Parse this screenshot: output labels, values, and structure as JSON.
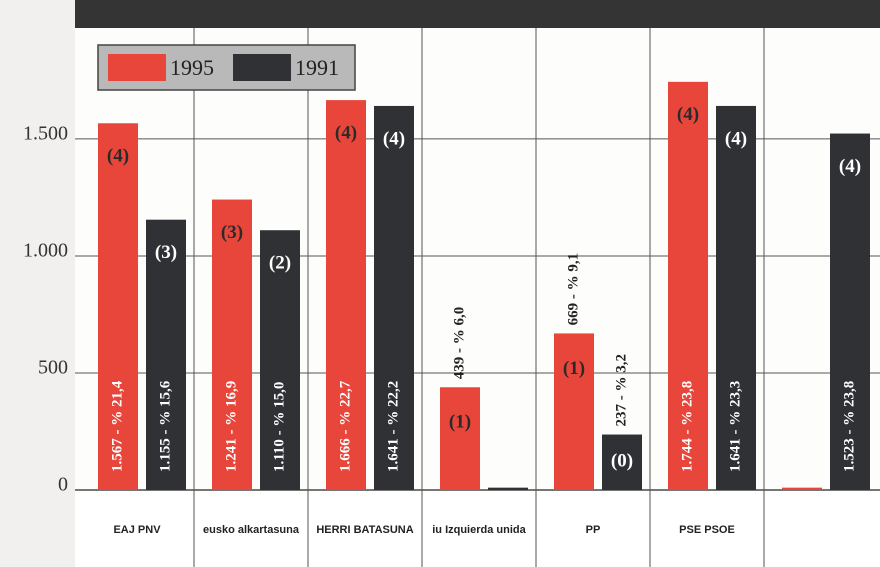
{
  "chart_data": {
    "type": "bar",
    "categories": [
      "EAJ PNV",
      "eusko alkartasuna",
      "HERRI BATASUNA",
      "iu Izquierda unida",
      "PP",
      "PSE PSOE",
      null
    ],
    "series": [
      {
        "name": "1995",
        "color": "#e8463b",
        "values": [
          1567,
          1241,
          1666,
          439,
          669,
          1744,
          10
        ],
        "value_labels": [
          "1.567 - % 21,4",
          "1.241 - % 16,9",
          "1.666 - % 22,7",
          "439 - % 6,0",
          "669 - % 9,1",
          "1.744 - % 23,8",
          null
        ],
        "seats": [
          "(4)",
          "(3)",
          "(4)",
          "(1)",
          "(1)",
          "(4)",
          null
        ]
      },
      {
        "name": "1991",
        "color": "#2f3134",
        "values": [
          1155,
          1110,
          1641,
          10,
          237,
          1641,
          1523
        ],
        "value_labels": [
          "1.155 - % 15,6",
          "1.110 - % 15,0",
          "1.641 - % 22,2",
          null,
          "237 - % 3,2",
          "1.641 - % 23,3",
          "1.523 - % 23,8"
        ],
        "seats": [
          "(3)",
          "(2)",
          "(4)",
          null,
          "(0)",
          "(4)",
          "(4)"
        ]
      }
    ],
    "ylim": [
      0,
      1974
    ],
    "yticks": [
      0,
      500,
      {
        "value": 1000,
        "label": "1.000"
      },
      {
        "value": 1500,
        "label": "1.500"
      }
    ],
    "grid": true,
    "legend": "top-left"
  }
}
